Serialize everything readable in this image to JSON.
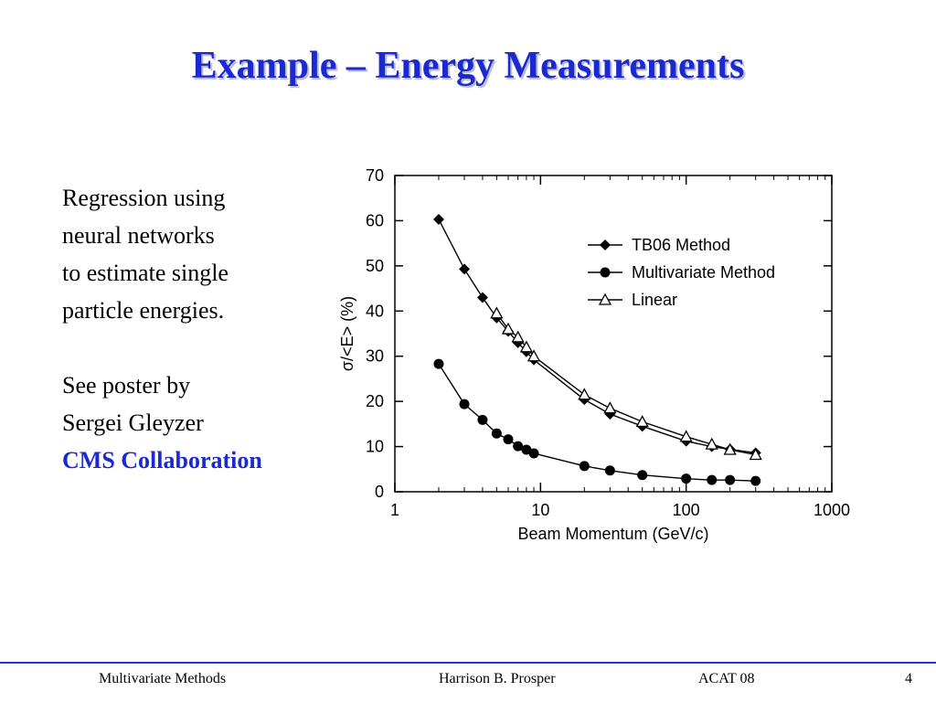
{
  "slide": {
    "title": "Example – Energy Measurements",
    "text_lines": [
      "Regression using",
      "neural networks",
      "to estimate single",
      "particle energies."
    ],
    "poster_lines": [
      "See poster by",
      "Sergei Gleyzer"
    ],
    "collab": "CMS Collaboration"
  },
  "footer": {
    "left": "Multivariate Methods",
    "center": "Harrison B. Prosper",
    "event": "ACAT 08",
    "page": "4"
  },
  "colors": {
    "title": "#1a2ad0",
    "footer_rule": "#2a34c8"
  },
  "chart_data": {
    "type": "line",
    "xscale": "log",
    "xlim": [
      1,
      1000
    ],
    "ylim": [
      0,
      70
    ],
    "xticks": [
      1,
      10,
      100,
      1000
    ],
    "xtick_labels": [
      "1",
      "10",
      "100",
      "1000"
    ],
    "yticks": [
      0,
      10,
      20,
      30,
      40,
      50,
      60,
      70
    ],
    "xlabel": "Beam Momentum (GeV/c)",
    "ylabel": "σ/<E> (%)",
    "legend_position": "top-right",
    "series": [
      {
        "name": "TB06 Method",
        "marker": "diamond",
        "x": [
          2,
          3,
          4,
          5,
          6,
          7,
          8,
          9,
          20,
          30,
          50,
          100,
          150,
          200,
          300
        ],
        "y": [
          60.3,
          49.3,
          43.0,
          38.5,
          35.5,
          33.0,
          31.0,
          29.2,
          20.4,
          17.2,
          14.5,
          11.2,
          10.0,
          9.4,
          8.6
        ]
      },
      {
        "name": "Multivariate Method",
        "marker": "circle",
        "x": [
          2,
          3,
          4,
          5,
          6,
          7,
          8,
          9,
          20,
          30,
          50,
          100,
          150,
          200,
          300
        ],
        "y": [
          28.3,
          19.4,
          15.9,
          12.9,
          11.6,
          10.1,
          9.3,
          8.5,
          5.7,
          4.7,
          3.7,
          2.9,
          2.6,
          2.6,
          2.4
        ]
      },
      {
        "name": "Linear",
        "marker": "triangle",
        "x": [
          5,
          6,
          7,
          8,
          9,
          20,
          30,
          50,
          100,
          150,
          200,
          300
        ],
        "y": [
          39.5,
          36.0,
          34.2,
          32.0,
          30.0,
          21.5,
          18.5,
          15.5,
          12.2,
          10.5,
          9.3,
          8.2
        ]
      }
    ]
  }
}
